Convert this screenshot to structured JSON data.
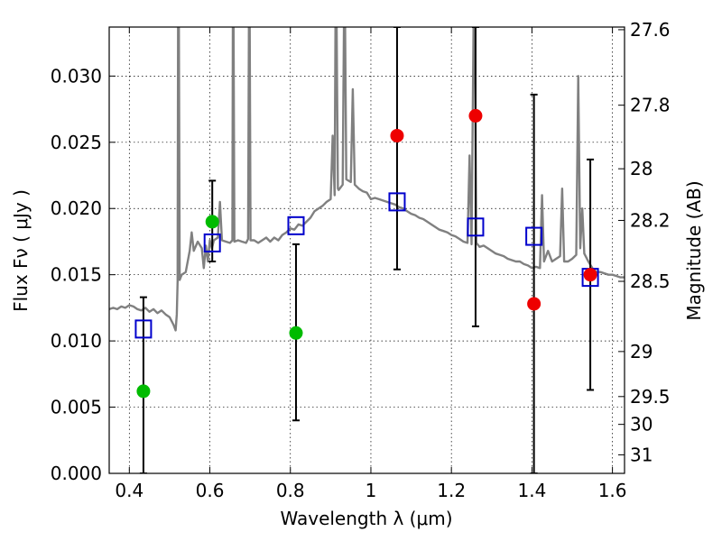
{
  "chart_data": {
    "type": "scatter",
    "xlabel": "Wavelength  λ (μm)",
    "ylabel": "Flux  Fν  ( μJy )",
    "y2label": "Magnitude (AB)",
    "xlim": [
      0.35,
      1.63
    ],
    "ylim": [
      0.0,
      0.0337
    ],
    "grid": true,
    "x_ticks": [
      0.4,
      0.6,
      0.8,
      1.0,
      1.2,
      1.4,
      1.6
    ],
    "x_tick_labels": [
      "0.4",
      "0.6",
      "0.8",
      "1",
      "1.2",
      "1.4",
      "1.6"
    ],
    "y_ticks": [
      0.0,
      0.005,
      0.01,
      0.015,
      0.02,
      0.025,
      0.03
    ],
    "y_tick_labels": [
      "0.000",
      "0.005",
      "0.010",
      "0.015",
      "0.020",
      "0.025",
      "0.030"
    ],
    "mag_ticks": [
      {
        "label": "27.6",
        "flux": 0.0335
      },
      {
        "label": "27.8",
        "flux": 0.0278
      },
      {
        "label": "28",
        "flux": 0.023
      },
      {
        "label": "28.2",
        "flux": 0.0191
      },
      {
        "label": "28.5",
        "flux": 0.0145
      },
      {
        "label": "29",
        "flux": 0.0092
      },
      {
        "label": "29.5",
        "flux": 0.0058
      },
      {
        "label": "30",
        "flux": 0.0037
      },
      {
        "label": "31",
        "flux": 0.0014
      }
    ],
    "colors": {
      "spectrum": "#808080",
      "green": "#00bb00",
      "red": "#ee0000",
      "model_box": "#0000cc",
      "errorbar": "#000000"
    },
    "series": [
      {
        "kind": "spectrum",
        "points": [
          [
            0.35,
            0.0124
          ],
          [
            0.36,
            0.0125
          ],
          [
            0.37,
            0.0124
          ],
          [
            0.38,
            0.0126
          ],
          [
            0.39,
            0.0125
          ],
          [
            0.4,
            0.0127
          ],
          [
            0.41,
            0.0126
          ],
          [
            0.42,
            0.0124
          ],
          [
            0.43,
            0.0123
          ],
          [
            0.44,
            0.0125
          ],
          [
            0.45,
            0.0122
          ],
          [
            0.46,
            0.0124
          ],
          [
            0.47,
            0.0121
          ],
          [
            0.48,
            0.0123
          ],
          [
            0.49,
            0.012
          ],
          [
            0.5,
            0.0118
          ],
          [
            0.51,
            0.0112
          ],
          [
            0.515,
            0.0108
          ],
          [
            0.518,
            0.012
          ],
          [
            0.52,
            0.0145
          ],
          [
            0.521,
            0.0337
          ],
          [
            0.523,
            0.0337
          ],
          [
            0.525,
            0.0146
          ],
          [
            0.53,
            0.015
          ],
          [
            0.54,
            0.0152
          ],
          [
            0.55,
            0.0168
          ],
          [
            0.555,
            0.0182
          ],
          [
            0.56,
            0.0168
          ],
          [
            0.57,
            0.0175
          ],
          [
            0.58,
            0.017
          ],
          [
            0.585,
            0.0155
          ],
          [
            0.59,
            0.0172
          ],
          [
            0.595,
            0.016
          ],
          [
            0.6,
            0.0176
          ],
          [
            0.605,
            0.017
          ],
          [
            0.61,
            0.0176
          ],
          [
            0.62,
            0.0178
          ],
          [
            0.625,
            0.0205
          ],
          [
            0.63,
            0.0176
          ],
          [
            0.64,
            0.0175
          ],
          [
            0.65,
            0.0174
          ],
          [
            0.656,
            0.0176
          ],
          [
            0.657,
            0.0337
          ],
          [
            0.659,
            0.0337
          ],
          [
            0.661,
            0.0175
          ],
          [
            0.67,
            0.0176
          ],
          [
            0.68,
            0.0175
          ],
          [
            0.69,
            0.0174
          ],
          [
            0.695,
            0.0177
          ],
          [
            0.697,
            0.0337
          ],
          [
            0.699,
            0.0337
          ],
          [
            0.701,
            0.0176
          ],
          [
            0.71,
            0.0176
          ],
          [
            0.72,
            0.0174
          ],
          [
            0.73,
            0.0176
          ],
          [
            0.74,
            0.0178
          ],
          [
            0.75,
            0.0175
          ],
          [
            0.76,
            0.0178
          ],
          [
            0.77,
            0.0176
          ],
          [
            0.78,
            0.018
          ],
          [
            0.79,
            0.0182
          ],
          [
            0.8,
            0.0185
          ],
          [
            0.81,
            0.0184
          ],
          [
            0.82,
            0.0188
          ],
          [
            0.83,
            0.0187
          ],
          [
            0.84,
            0.019
          ],
          [
            0.85,
            0.0193
          ],
          [
            0.86,
            0.0198
          ],
          [
            0.87,
            0.02
          ],
          [
            0.88,
            0.0202
          ],
          [
            0.89,
            0.0205
          ],
          [
            0.9,
            0.0207
          ],
          [
            0.905,
            0.0255
          ],
          [
            0.91,
            0.021
          ],
          [
            0.912,
            0.0337
          ],
          [
            0.915,
            0.0337
          ],
          [
            0.918,
            0.0215
          ],
          [
            0.92,
            0.0214
          ],
          [
            0.93,
            0.0218
          ],
          [
            0.933,
            0.0337
          ],
          [
            0.936,
            0.0337
          ],
          [
            0.939,
            0.0222
          ],
          [
            0.95,
            0.022
          ],
          [
            0.955,
            0.029
          ],
          [
            0.96,
            0.0218
          ],
          [
            0.97,
            0.0215
          ],
          [
            0.98,
            0.0213
          ],
          [
            0.99,
            0.0212
          ],
          [
            1.0,
            0.0207
          ],
          [
            1.01,
            0.0208
          ],
          [
            1.02,
            0.0207
          ],
          [
            1.03,
            0.0206
          ],
          [
            1.04,
            0.0205
          ],
          [
            1.05,
            0.0204
          ],
          [
            1.06,
            0.0203
          ],
          [
            1.07,
            0.0201
          ],
          [
            1.08,
            0.02
          ],
          [
            1.09,
            0.0198
          ],
          [
            1.1,
            0.0196
          ],
          [
            1.11,
            0.0195
          ],
          [
            1.12,
            0.0193
          ],
          [
            1.13,
            0.0192
          ],
          [
            1.14,
            0.019
          ],
          [
            1.15,
            0.0188
          ],
          [
            1.16,
            0.0186
          ],
          [
            1.17,
            0.0184
          ],
          [
            1.18,
            0.0183
          ],
          [
            1.19,
            0.0182
          ],
          [
            1.2,
            0.018
          ],
          [
            1.21,
            0.0179
          ],
          [
            1.22,
            0.0177
          ],
          [
            1.23,
            0.0175
          ],
          [
            1.24,
            0.0174
          ],
          [
            1.245,
            0.024
          ],
          [
            1.25,
            0.0173
          ],
          [
            1.255,
            0.0337
          ],
          [
            1.258,
            0.0337
          ],
          [
            1.262,
            0.0174
          ],
          [
            1.27,
            0.0171
          ],
          [
            1.28,
            0.0172
          ],
          [
            1.29,
            0.017
          ],
          [
            1.3,
            0.0168
          ],
          [
            1.31,
            0.0166
          ],
          [
            1.32,
            0.0165
          ],
          [
            1.33,
            0.0164
          ],
          [
            1.34,
            0.0162
          ],
          [
            1.35,
            0.0161
          ],
          [
            1.36,
            0.016
          ],
          [
            1.37,
            0.016
          ],
          [
            1.38,
            0.0158
          ],
          [
            1.39,
            0.0157
          ],
          [
            1.4,
            0.0155
          ],
          [
            1.41,
            0.0156
          ],
          [
            1.42,
            0.0155
          ],
          [
            1.425,
            0.021
          ],
          [
            1.43,
            0.016
          ],
          [
            1.44,
            0.0168
          ],
          [
            1.45,
            0.016
          ],
          [
            1.46,
            0.0162
          ],
          [
            1.47,
            0.0164
          ],
          [
            1.475,
            0.0215
          ],
          [
            1.48,
            0.016
          ],
          [
            1.49,
            0.016
          ],
          [
            1.5,
            0.0162
          ],
          [
            1.51,
            0.0165
          ],
          [
            1.515,
            0.03
          ],
          [
            1.52,
            0.017
          ],
          [
            1.525,
            0.02
          ],
          [
            1.53,
            0.0166
          ],
          [
            1.54,
            0.016
          ],
          [
            1.55,
            0.0155
          ],
          [
            1.56,
            0.0152
          ],
          [
            1.57,
            0.0152
          ],
          [
            1.58,
            0.0151
          ],
          [
            1.59,
            0.015
          ],
          [
            1.6,
            0.015
          ],
          [
            1.61,
            0.0149
          ],
          [
            1.62,
            0.0148
          ],
          [
            1.63,
            0.0148
          ]
        ]
      },
      {
        "kind": "measured-green",
        "points": [
          {
            "x": 0.435,
            "y": 0.0062,
            "ylow": 0.0,
            "yhigh": 0.0133
          },
          {
            "x": 0.606,
            "y": 0.019,
            "ylow": 0.016,
            "yhigh": 0.0221
          },
          {
            "x": 0.814,
            "y": 0.0106,
            "ylow": 0.004,
            "yhigh": 0.0173
          }
        ]
      },
      {
        "kind": "measured-red",
        "points": [
          {
            "x": 1.065,
            "y": 0.0255,
            "ylow": 0.0154,
            "yhigh": 0.0337
          },
          {
            "x": 1.26,
            "y": 0.027,
            "ylow": 0.0111,
            "yhigh": 0.0337
          },
          {
            "x": 1.405,
            "y": 0.0128,
            "ylow": 0.0,
            "yhigh": 0.0286
          },
          {
            "x": 1.545,
            "y": 0.015,
            "ylow": 0.0063,
            "yhigh": 0.0237
          }
        ]
      },
      {
        "kind": "model-boxes",
        "points": [
          {
            "x": 0.435,
            "y": 0.0109
          },
          {
            "x": 0.606,
            "y": 0.0174
          },
          {
            "x": 0.814,
            "y": 0.0187
          },
          {
            "x": 1.065,
            "y": 0.0205
          },
          {
            "x": 1.26,
            "y": 0.0186
          },
          {
            "x": 1.405,
            "y": 0.0179
          },
          {
            "x": 1.545,
            "y": 0.0148
          }
        ]
      }
    ]
  }
}
